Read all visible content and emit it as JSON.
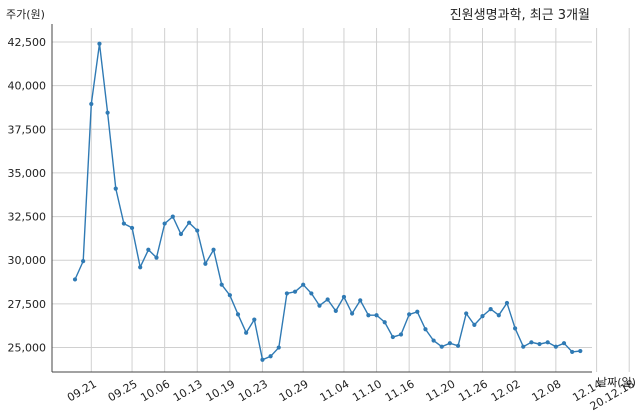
{
  "chart_data": {
    "type": "line",
    "title": "진원생명과학, 최근 3개월",
    "xlabel": "날짜(일)",
    "ylabel": "주가(원)",
    "ylim": [
      23600,
      43300
    ],
    "grid": true,
    "line_color": "#2f7ab4",
    "x_tick_labels": [
      "09.21",
      "09.25",
      "10.06",
      "10.13",
      "10.19",
      "10.23",
      "10.29",
      "11.04",
      "11.10",
      "11.16",
      "11.20",
      "11.26",
      "12.02",
      "12.08",
      "12.14",
      "20.12.18"
    ],
    "x_tick_indices": [
      2,
      7,
      11,
      15,
      19,
      23,
      28,
      33,
      37,
      41,
      46,
      50,
      54,
      59,
      64,
      68
    ],
    "y_ticks": [
      25000,
      27500,
      30000,
      32500,
      35000,
      37500,
      40000,
      42500
    ],
    "y_tick_labels": [
      "25,000",
      "27,500",
      "30,000",
      "32,500",
      "35,000",
      "37,500",
      "40,000",
      "42,500"
    ],
    "series": [
      {
        "values": [
          28900,
          29950,
          38950,
          42400,
          38450,
          34100,
          32100,
          31850,
          29600,
          30600,
          30150,
          32100,
          32500,
          31500,
          32150,
          31700,
          29800,
          30600,
          28600,
          28000,
          26900,
          25850,
          26600,
          24300,
          24500,
          25000,
          28100,
          28200,
          28600,
          28100,
          27400,
          27750,
          27100,
          27900,
          26950,
          27700,
          26850,
          26850,
          26450,
          25600,
          25750,
          26900,
          27050,
          26050,
          25400,
          25050,
          25250,
          25100,
          26950,
          26300,
          26800,
          27200,
          26850,
          27550,
          26100,
          25050,
          25300,
          25200,
          25300,
          25050,
          25250,
          24750,
          24800
        ]
      }
    ]
  }
}
